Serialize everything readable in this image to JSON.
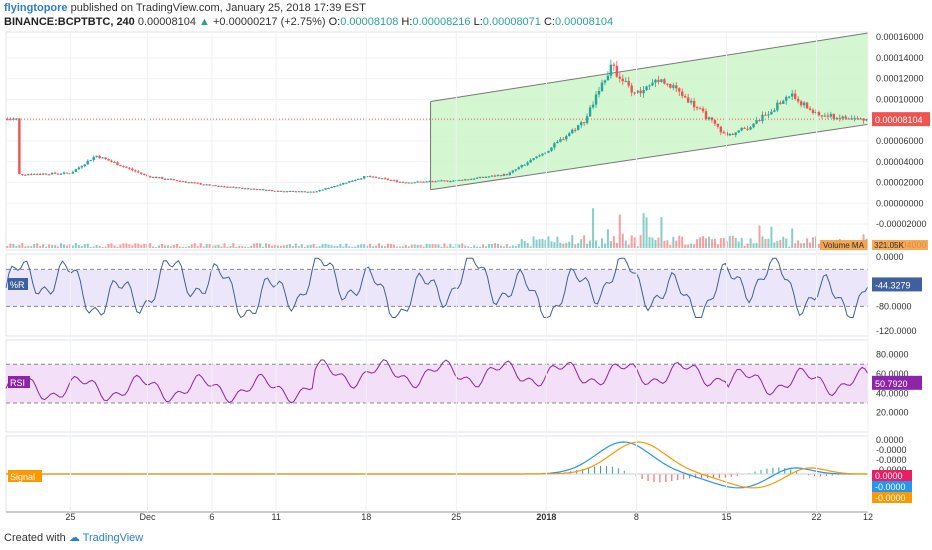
{
  "header": {
    "author": "flyingtopore",
    "published": "published on TradingView.com, January 25, 2018 17:39 EST",
    "symbol": "BINANCE:BCPTBTC, 240",
    "last": "0.00008104",
    "change": "+0.00000217 (+2.75%)",
    "o_label": "O:",
    "o": "0.00008108",
    "h_label": "H:",
    "h": "0.00008216",
    "l_label": "L:",
    "l": "0.00008071",
    "c_label": "C:",
    "c": "0.00008104"
  },
  "footer": {
    "created": "Created with",
    "brand": "TradingView"
  },
  "colors": {
    "up": "#26a69a",
    "down": "#ef5350",
    "channel_fill": "#cdf5c8",
    "wr_band": "#ece6fb",
    "rsi_band": "#f3e0f8",
    "rsi_line": "#8e24aa",
    "wr_line": "#3f5f9f",
    "macd": "#2196f3",
    "signal": "#ff9800"
  },
  "chart_data": [
    {
      "type": "candlestick",
      "symbol": "BINANCE:BCPTBTC, 240",
      "x_ticks": [
        "25",
        "Dec",
        "6",
        "11",
        "18",
        "25",
        "2018",
        "8",
        "15",
        "22",
        "12"
      ],
      "y_ticks": [
        "0.00016000",
        "0.00014000",
        "0.00012000",
        "0.00010000",
        "0.00008000",
        "0.00006000",
        "0.00004000",
        "0.00002000",
        "0.00000000",
        "-0.00002000",
        "-0.00004000"
      ],
      "ylim": [
        -4.5e-05,
        0.000165
      ],
      "last_price_label": "0.00008104",
      "volume_label": "Volume MA",
      "volume_value": "321.05K",
      "close_path": [
        {
          "x": "Nov 21",
          "y": 2.8e-05
        },
        {
          "x": "Nov 25",
          "y": 2.9e-05
        },
        {
          "x": "Nov 27",
          "y": 4.6e-05
        },
        {
          "x": "Dec 1",
          "y": 2.6e-05
        },
        {
          "x": "Dec 6",
          "y": 1.7e-05
        },
        {
          "x": "Dec 11",
          "y": 1.2e-05
        },
        {
          "x": "Dec 14",
          "y": 1.1e-05
        },
        {
          "x": "Dec 18",
          "y": 2.6e-05
        },
        {
          "x": "Dec 21",
          "y": 2e-05
        },
        {
          "x": "Dec 25",
          "y": 2.2e-05
        },
        {
          "x": "Dec 29",
          "y": 2.8e-05
        },
        {
          "x": "Jan 1",
          "y": 5e-05
        },
        {
          "x": "Jan 4",
          "y": 8e-05
        },
        {
          "x": "Jan 6",
          "y": 0.000132
        },
        {
          "x": "Jan 8",
          "y": 0.000105
        },
        {
          "x": "Jan 10",
          "y": 0.00012
        },
        {
          "x": "Jan 12",
          "y": 0.0001
        },
        {
          "x": "Jan 15",
          "y": 6.5e-05
        },
        {
          "x": "Jan 17",
          "y": 7.5e-05
        },
        {
          "x": "Jan 20",
          "y": 0.000105
        },
        {
          "x": "Jan 22",
          "y": 8.5e-05
        },
        {
          "x": "Jan 25",
          "y": 8.1e-05
        }
      ],
      "channel": {
        "upper": [
          {
            "x": "Dec 23",
            "y": 9.8e-05
          },
          {
            "x": "Jan 26",
            "y": 0.000164
          }
        ],
        "lower": [
          {
            "x": "Dec 23",
            "y": 1.3e-05
          },
          {
            "x": "Jan 26",
            "y": 7.6e-05
          }
        ]
      }
    },
    {
      "type": "line",
      "label": "%R",
      "value_label": "-44.3279",
      "y_ticks": [
        "0.0000",
        "-80.0000",
        "-120.0000"
      ],
      "ylim": [
        -128,
        5
      ],
      "bands": [
        -20,
        -80
      ]
    },
    {
      "type": "line",
      "label": "RSI",
      "value_label": "50.7920",
      "y_ticks": [
        "80.0000",
        "60.0000",
        "40.0000",
        "20.0000"
      ],
      "ylim": [
        0,
        95
      ],
      "bands": [
        70,
        30
      ]
    },
    {
      "type": "line",
      "label": "Signal",
      "series": [
        {
          "name": "Signal"
        }
      ],
      "y_ticks": [
        "0.0000",
        "-0.0000",
        "-0.0000",
        "-0.0000"
      ],
      "value_labels": [
        "0.0000",
        "-0.0000",
        "-0.0000"
      ]
    }
  ]
}
